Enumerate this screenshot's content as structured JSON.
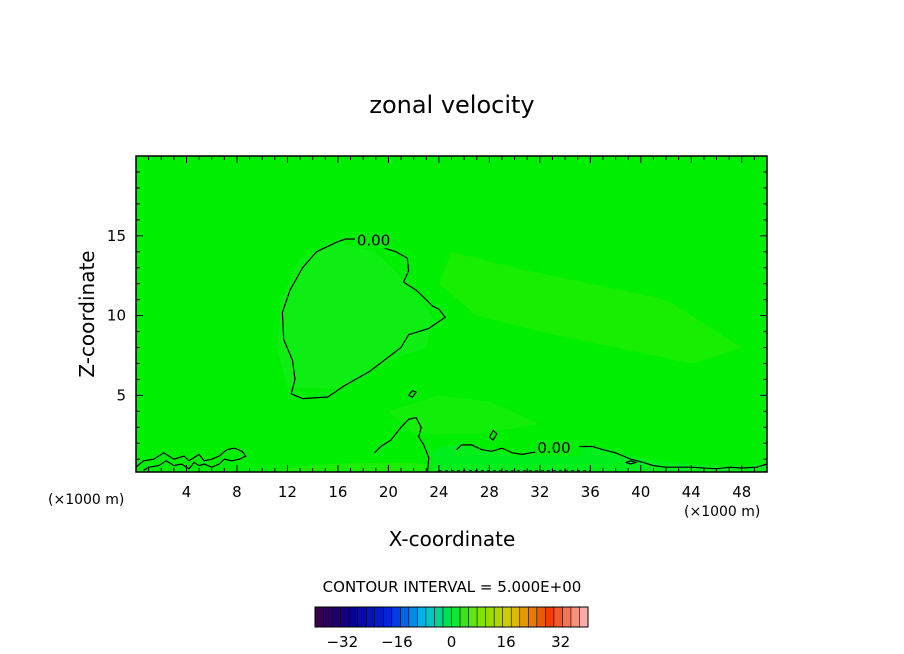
{
  "chart_data": {
    "type": "contour",
    "title": "zonal velocity",
    "xlabel": "X-coordinate",
    "ylabel": "Z-coordinate",
    "x_unit": "(×1000 m)",
    "xlim": [
      0,
      50
    ],
    "ylim": [
      0.2,
      20
    ],
    "x_ticks": [
      4,
      8,
      12,
      16,
      20,
      24,
      28,
      32,
      36,
      40,
      44,
      48
    ],
    "y_ticks": [
      5,
      10,
      15
    ],
    "contour_labels": [
      {
        "text": "0.00",
        "x": 17.5,
        "y": 14.4
      },
      {
        "text": "0.00",
        "x": 31.8,
        "y": 1.4
      }
    ],
    "colorbar": {
      "label": "CONTOUR INTERVAL = 5.000E+00",
      "interval": 5.0,
      "range": [
        -40,
        40
      ],
      "ticks": [
        -32,
        -16,
        0,
        16,
        32
      ]
    },
    "fill_color": "#00ee00"
  }
}
